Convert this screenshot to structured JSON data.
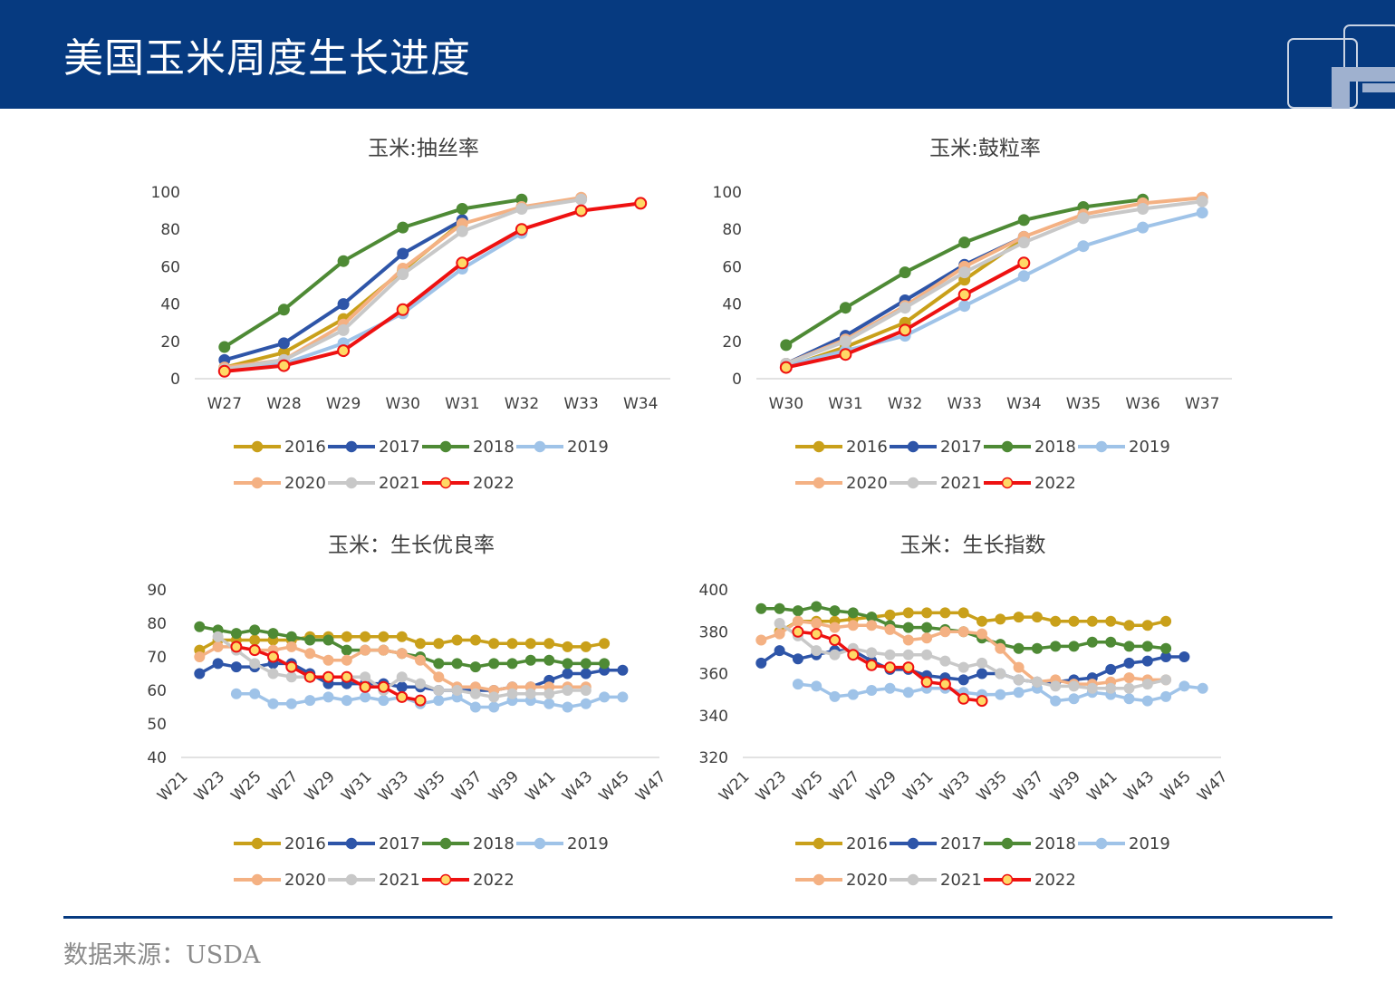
{
  "header": {
    "title": "美国玉米周度生长进度"
  },
  "footer": {
    "source": "数据来源：USDA"
  },
  "colors": {
    "header_bg": "#063a80",
    "2016": "#c9a01a",
    "2017": "#2e55a8",
    "2018": "#4e8a35",
    "2019": "#9fc3e8",
    "2020": "#f4b183",
    "2021": "#c8c8c8",
    "2022": "#ee1111"
  },
  "chart_data": [
    {
      "type": "line",
      "title": "玉米:抽丝率",
      "categories": [
        "W27",
        "W28",
        "W29",
        "W30",
        "W31",
        "W32",
        "W33",
        "W34"
      ],
      "ylim": [
        0,
        100
      ],
      "yticks": [
        0,
        20,
        40,
        60,
        80,
        100
      ],
      "grid": false,
      "legend_position": "bottom",
      "series": [
        {
          "name": "2016",
          "values": [
            6,
            14,
            32,
            58,
            84,
            null,
            null,
            null
          ]
        },
        {
          "name": "2017",
          "values": [
            10,
            19,
            40,
            67,
            85,
            null,
            null,
            null
          ]
        },
        {
          "name": "2018",
          "values": [
            17,
            37,
            63,
            81,
            91,
            96,
            null,
            null
          ]
        },
        {
          "name": "2019",
          "values": [
            4,
            8,
            19,
            35,
            59,
            78,
            null,
            null
          ]
        },
        {
          "name": "2020",
          "values": [
            6,
            10,
            29,
            59,
            83,
            92,
            97,
            null
          ]
        },
        {
          "name": "2021",
          "values": [
            5,
            10,
            26,
            56,
            79,
            91,
            96,
            null
          ]
        },
        {
          "name": "2022",
          "values": [
            4,
            7,
            15,
            37,
            62,
            80,
            90,
            94
          ]
        }
      ]
    },
    {
      "type": "line",
      "title": "玉米:鼓粒率",
      "categories": [
        "W30",
        "W31",
        "W32",
        "W33",
        "W34",
        "W35",
        "W36",
        "W37"
      ],
      "ylim": [
        0,
        100
      ],
      "yticks": [
        0,
        20,
        40,
        60,
        80,
        100
      ],
      "grid": false,
      "legend_position": "bottom",
      "series": [
        {
          "name": "2016",
          "values": [
            6,
            17,
            30,
            53,
            75,
            null,
            null,
            null
          ]
        },
        {
          "name": "2017",
          "values": [
            8,
            23,
            42,
            61,
            76,
            null,
            null,
            null
          ]
        },
        {
          "name": "2018",
          "values": [
            18,
            38,
            57,
            73,
            85,
            92,
            96,
            null
          ]
        },
        {
          "name": "2019",
          "values": [
            7,
            15,
            23,
            39,
            55,
            71,
            81,
            89
          ]
        },
        {
          "name": "2020",
          "values": [
            8,
            21,
            39,
            60,
            76,
            88,
            94,
            97
          ]
        },
        {
          "name": "2021",
          "values": [
            8,
            20,
            38,
            57,
            73,
            86,
            91,
            95
          ]
        },
        {
          "name": "2022",
          "values": [
            6,
            13,
            26,
            45,
            62,
            null,
            null,
            null
          ]
        }
      ]
    },
    {
      "type": "line",
      "title": "玉米：生长优良率",
      "categories": [
        "W21",
        "W22",
        "W23",
        "W24",
        "W25",
        "W26",
        "W27",
        "W28",
        "W29",
        "W30",
        "W31",
        "W32",
        "W33",
        "W34",
        "W35",
        "W36",
        "W37",
        "W38",
        "W39",
        "W40",
        "W41",
        "W42",
        "W43",
        "W44",
        "W45",
        "W46",
        "W47"
      ],
      "tick_labels": [
        "W21",
        "W23",
        "W25",
        "W27",
        "W29",
        "W31",
        "W33",
        "W35",
        "W37",
        "W39",
        "W41",
        "W43",
        "W45",
        "W47"
      ],
      "ylim": [
        40,
        90
      ],
      "yticks": [
        40,
        50,
        60,
        70,
        80,
        90
      ],
      "grid": false,
      "legend_position": "bottom",
      "series": [
        {
          "name": "2016",
          "values": [
            null,
            72,
            75,
            75,
            75,
            75,
            75,
            76,
            76,
            76,
            76,
            76,
            76,
            74,
            74,
            75,
            75,
            74,
            74,
            74,
            74,
            73,
            73,
            74,
            null,
            null,
            null
          ]
        },
        {
          "name": "2017",
          "values": [
            null,
            65,
            68,
            67,
            67,
            68,
            68,
            65,
            62,
            62,
            62,
            62,
            61,
            61,
            60,
            60,
            60,
            60,
            61,
            61,
            63,
            65,
            65,
            66,
            66,
            null,
            null
          ]
        },
        {
          "name": "2018",
          "values": [
            null,
            79,
            78,
            77,
            78,
            77,
            76,
            75,
            75,
            72,
            72,
            72,
            71,
            70,
            68,
            68,
            67,
            68,
            68,
            69,
            69,
            68,
            68,
            68,
            null,
            null,
            null
          ]
        },
        {
          "name": "2019",
          "values": [
            null,
            null,
            null,
            59,
            59,
            56,
            56,
            57,
            58,
            57,
            58,
            57,
            58,
            56,
            57,
            58,
            55,
            55,
            57,
            57,
            56,
            55,
            56,
            58,
            58,
            null,
            null
          ]
        },
        {
          "name": "2020",
          "values": [
            null,
            70,
            73,
            73,
            72,
            72,
            73,
            71,
            69,
            69,
            72,
            72,
            71,
            69,
            64,
            61,
            61,
            60,
            61,
            61,
            61,
            61,
            61,
            null,
            null,
            null,
            null
          ]
        },
        {
          "name": "2021",
          "values": [
            null,
            null,
            76,
            72,
            68,
            65,
            64,
            64,
            64,
            64,
            64,
            60,
            64,
            62,
            60,
            60,
            59,
            58,
            59,
            59,
            59,
            60,
            60,
            null,
            null,
            null,
            null
          ]
        },
        {
          "name": "2022",
          "values": [
            null,
            null,
            null,
            73,
            72,
            70,
            67,
            64,
            64,
            64,
            61,
            61,
            58,
            57,
            null,
            null,
            null,
            null,
            null,
            null,
            null,
            null,
            null,
            null,
            null,
            null,
            null
          ]
        }
      ]
    },
    {
      "type": "line",
      "title": "玉米：生长指数",
      "categories": [
        "W21",
        "W22",
        "W23",
        "W24",
        "W25",
        "W26",
        "W27",
        "W28",
        "W29",
        "W30",
        "W31",
        "W32",
        "W33",
        "W34",
        "W35",
        "W36",
        "W37",
        "W38",
        "W39",
        "W40",
        "W41",
        "W42",
        "W43",
        "W44",
        "W45",
        "W46",
        "W47"
      ],
      "tick_labels": [
        "W21",
        "W23",
        "W25",
        "W27",
        "W29",
        "W31",
        "W33",
        "W35",
        "W37",
        "W39",
        "W41",
        "W43",
        "W45",
        "W47"
      ],
      "ylim": [
        320,
        400
      ],
      "yticks": [
        320,
        340,
        360,
        380,
        400
      ],
      "grid": false,
      "legend_position": "bottom",
      "series": [
        {
          "name": "2016",
          "values": [
            null,
            null,
            380,
            385,
            385,
            385,
            386,
            387,
            388,
            389,
            389,
            389,
            389,
            385,
            386,
            387,
            387,
            385,
            385,
            385,
            385,
            383,
            383,
            385,
            null,
            null,
            null
          ]
        },
        {
          "name": "2017",
          "values": [
            null,
            365,
            371,
            367,
            369,
            371,
            371,
            366,
            362,
            362,
            359,
            358,
            357,
            360,
            360,
            357,
            356,
            356,
            357,
            358,
            362,
            365,
            366,
            368,
            368,
            null,
            null
          ]
        },
        {
          "name": "2018",
          "values": [
            null,
            391,
            391,
            390,
            392,
            390,
            389,
            387,
            383,
            382,
            382,
            381,
            380,
            377,
            374,
            372,
            372,
            373,
            373,
            375,
            375,
            373,
            373,
            372,
            null,
            null,
            null
          ]
        },
        {
          "name": "2019",
          "values": [
            null,
            null,
            null,
            355,
            354,
            349,
            350,
            352,
            353,
            351,
            353,
            353,
            351,
            350,
            350,
            351,
            353,
            347,
            348,
            351,
            350,
            348,
            347,
            349,
            354,
            353,
            null
          ]
        },
        {
          "name": "2020",
          "values": [
            null,
            376,
            379,
            385,
            384,
            382,
            383,
            383,
            381,
            376,
            377,
            380,
            380,
            379,
            372,
            363,
            356,
            357,
            355,
            355,
            356,
            358,
            357,
            357,
            null,
            null,
            null
          ]
        },
        {
          "name": "2021",
          "values": [
            null,
            null,
            384,
            378,
            371,
            369,
            372,
            370,
            369,
            369,
            369,
            366,
            363,
            365,
            360,
            357,
            356,
            354,
            354,
            353,
            353,
            353,
            355,
            357,
            null,
            null,
            null
          ]
        },
        {
          "name": "2022",
          "values": [
            null,
            null,
            null,
            380,
            379,
            376,
            369,
            364,
            363,
            363,
            356,
            355,
            348,
            347,
            null,
            null,
            null,
            null,
            null,
            null,
            null,
            null,
            null,
            null,
            null,
            null,
            null
          ]
        }
      ]
    }
  ],
  "legend": {
    "row1": [
      "2016",
      "2017",
      "2018",
      "2019"
    ],
    "row2": [
      "2020",
      "2021",
      "2022"
    ]
  }
}
